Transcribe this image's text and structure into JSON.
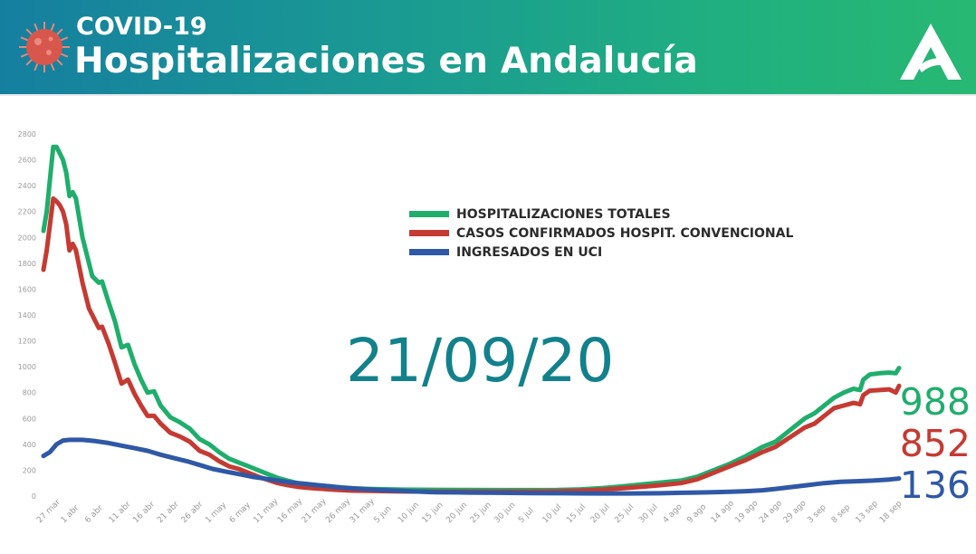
{
  "header": {
    "subtitle": "COVID-19",
    "title": "Hospitalizaciones en Andalucía",
    "icons": [
      "virus-icon",
      "junta-andalucia-logo"
    ]
  },
  "date_label": "21/09/20",
  "latest_values": {
    "total": "988",
    "confirmed": "852",
    "icu": "136"
  },
  "colors": {
    "total": "#1fae6c",
    "confirmed": "#c53a32",
    "icu": "#2f58a6",
    "date": "#12818b"
  },
  "chart_data": {
    "type": "line",
    "xlabel": "",
    "ylabel": "",
    "ylim": [
      0,
      2800
    ],
    "y_ticks": [
      0,
      200,
      400,
      600,
      800,
      1000,
      1200,
      1400,
      1600,
      1800,
      2000,
      2200,
      2400,
      2600,
      2800
    ],
    "x_tick_labels": [
      "27 mar",
      "1 abr",
      "6 abr",
      "11 abr",
      "16 abr",
      "21 abr",
      "26 abr",
      "1 may",
      "6 may",
      "11 may",
      "16 may",
      "21 may",
      "26 may",
      "31 may",
      "5 jun",
      "10 jun",
      "15 jun",
      "20 jun",
      "25 jun",
      "30 jun",
      "5 jul",
      "10 jul",
      "15 jul",
      "20 jul",
      "25 jul",
      "30 jul",
      "4 ago",
      "9 ago",
      "14 ago",
      "19 ago",
      "24 ago",
      "29 ago",
      "3 sep",
      "8 sep",
      "13 sep",
      "18 sep"
    ],
    "grid": false,
    "legend_position": "center-top",
    "series": [
      {
        "name": "HOSPITALIZACIONES TOTALES",
        "color": "#1fae6c",
        "points": [
          [
            0,
            2050
          ],
          [
            1,
            2200
          ],
          [
            2,
            2450
          ],
          [
            3,
            2700
          ],
          [
            4,
            2700
          ],
          [
            5,
            2650
          ],
          [
            6,
            2600
          ],
          [
            7,
            2500
          ],
          [
            8,
            2320
          ],
          [
            9,
            2350
          ],
          [
            10,
            2300
          ],
          [
            12,
            2000
          ],
          [
            14,
            1800
          ],
          [
            15,
            1700
          ],
          [
            17,
            1650
          ],
          [
            18,
            1660
          ],
          [
            20,
            1500
          ],
          [
            22,
            1350
          ],
          [
            24,
            1150
          ],
          [
            26,
            1170
          ],
          [
            28,
            1020
          ],
          [
            30,
            900
          ],
          [
            32,
            800
          ],
          [
            34,
            810
          ],
          [
            36,
            700
          ],
          [
            39,
            610
          ],
          [
            42,
            570
          ],
          [
            45,
            520
          ],
          [
            48,
            440
          ],
          [
            51,
            400
          ],
          [
            54,
            340
          ],
          [
            57,
            290
          ],
          [
            60,
            260
          ],
          [
            63,
            230
          ],
          [
            66,
            200
          ],
          [
            69,
            170
          ],
          [
            72,
            140
          ],
          [
            75,
            120
          ],
          [
            78,
            100
          ],
          [
            82,
            90
          ],
          [
            86,
            80
          ],
          [
            90,
            70
          ],
          [
            95,
            60
          ],
          [
            100,
            55
          ],
          [
            110,
            50
          ],
          [
            120,
            48
          ],
          [
            130,
            47
          ],
          [
            140,
            46
          ],
          [
            150,
            46
          ],
          [
            158,
            47
          ],
          [
            165,
            52
          ],
          [
            172,
            62
          ],
          [
            178,
            75
          ],
          [
            184,
            90
          ],
          [
            190,
            105
          ],
          [
            196,
            120
          ],
          [
            201,
            150
          ],
          [
            206,
            200
          ],
          [
            211,
            250
          ],
          [
            216,
            310
          ],
          [
            221,
            380
          ],
          [
            225,
            420
          ],
          [
            228,
            480
          ],
          [
            231,
            540
          ],
          [
            234,
            600
          ],
          [
            237,
            640
          ],
          [
            240,
            700
          ],
          [
            243,
            760
          ],
          [
            246,
            800
          ],
          [
            249,
            830
          ],
          [
            251,
            820
          ],
          [
            252,
            900
          ],
          [
            254,
            940
          ],
          [
            257,
            950
          ],
          [
            260,
            955
          ],
          [
            262,
            950
          ],
          [
            263,
            990
          ]
        ]
      },
      {
        "name": "CASOS CONFIRMADOS HOSPIT. CONVENCIONAL",
        "color": "#c53a32",
        "points": [
          [
            0,
            1750
          ],
          [
            1,
            1900
          ],
          [
            2,
            2100
          ],
          [
            3,
            2300
          ],
          [
            4,
            2280
          ],
          [
            5,
            2250
          ],
          [
            6,
            2200
          ],
          [
            7,
            2100
          ],
          [
            8,
            1900
          ],
          [
            9,
            1950
          ],
          [
            10,
            1900
          ],
          [
            12,
            1650
          ],
          [
            14,
            1450
          ],
          [
            15,
            1400
          ],
          [
            17,
            1300
          ],
          [
            18,
            1310
          ],
          [
            20,
            1180
          ],
          [
            22,
            1030
          ],
          [
            24,
            870
          ],
          [
            26,
            900
          ],
          [
            28,
            790
          ],
          [
            30,
            700
          ],
          [
            32,
            620
          ],
          [
            34,
            620
          ],
          [
            36,
            560
          ],
          [
            39,
            490
          ],
          [
            42,
            460
          ],
          [
            45,
            420
          ],
          [
            48,
            350
          ],
          [
            51,
            320
          ],
          [
            54,
            270
          ],
          [
            57,
            230
          ],
          [
            60,
            210
          ],
          [
            63,
            180
          ],
          [
            66,
            150
          ],
          [
            69,
            125
          ],
          [
            72,
            100
          ],
          [
            75,
            85
          ],
          [
            78,
            72
          ],
          [
            82,
            62
          ],
          [
            86,
            55
          ],
          [
            90,
            48
          ],
          [
            95,
            42
          ],
          [
            100,
            40
          ],
          [
            110,
            36
          ],
          [
            120,
            34
          ],
          [
            130,
            34
          ],
          [
            140,
            34
          ],
          [
            150,
            35
          ],
          [
            158,
            37
          ],
          [
            165,
            42
          ],
          [
            172,
            50
          ],
          [
            178,
            60
          ],
          [
            184,
            72
          ],
          [
            190,
            85
          ],
          [
            196,
            100
          ],
          [
            201,
            130
          ],
          [
            206,
            180
          ],
          [
            211,
            230
          ],
          [
            216,
            280
          ],
          [
            221,
            340
          ],
          [
            225,
            380
          ],
          [
            228,
            430
          ],
          [
            231,
            480
          ],
          [
            234,
            530
          ],
          [
            237,
            560
          ],
          [
            240,
            620
          ],
          [
            243,
            680
          ],
          [
            246,
            700
          ],
          [
            249,
            720
          ],
          [
            251,
            710
          ],
          [
            252,
            780
          ],
          [
            254,
            815
          ],
          [
            257,
            820
          ],
          [
            260,
            825
          ],
          [
            262,
            800
          ],
          [
            263,
            852
          ]
        ]
      },
      {
        "name": "INGRESADOS EN UCI",
        "color": "#2f58a6",
        "points": [
          [
            0,
            310
          ],
          [
            2,
            340
          ],
          [
            4,
            400
          ],
          [
            6,
            430
          ],
          [
            8,
            435
          ],
          [
            12,
            435
          ],
          [
            16,
            425
          ],
          [
            20,
            410
          ],
          [
            24,
            390
          ],
          [
            28,
            370
          ],
          [
            32,
            350
          ],
          [
            36,
            320
          ],
          [
            40,
            295
          ],
          [
            44,
            270
          ],
          [
            48,
            240
          ],
          [
            52,
            210
          ],
          [
            56,
            190
          ],
          [
            60,
            170
          ],
          [
            64,
            150
          ],
          [
            68,
            135
          ],
          [
            72,
            120
          ],
          [
            76,
            105
          ],
          [
            80,
            95
          ],
          [
            84,
            85
          ],
          [
            88,
            75
          ],
          [
            92,
            65
          ],
          [
            96,
            58
          ],
          [
            100,
            52
          ],
          [
            105,
            45
          ],
          [
            110,
            40
          ],
          [
            115,
            35
          ],
          [
            120,
            30
          ],
          [
            130,
            27
          ],
          [
            140,
            25
          ],
          [
            150,
            23
          ],
          [
            160,
            22
          ],
          [
            170,
            20
          ],
          [
            180,
            20
          ],
          [
            190,
            22
          ],
          [
            196,
            25
          ],
          [
            201,
            27
          ],
          [
            206,
            30
          ],
          [
            211,
            33
          ],
          [
            216,
            38
          ],
          [
            221,
            45
          ],
          [
            225,
            55
          ],
          [
            230,
            70
          ],
          [
            235,
            85
          ],
          [
            240,
            100
          ],
          [
            245,
            110
          ],
          [
            250,
            115
          ],
          [
            255,
            120
          ],
          [
            260,
            128
          ],
          [
            263,
            136
          ]
        ]
      }
    ]
  }
}
